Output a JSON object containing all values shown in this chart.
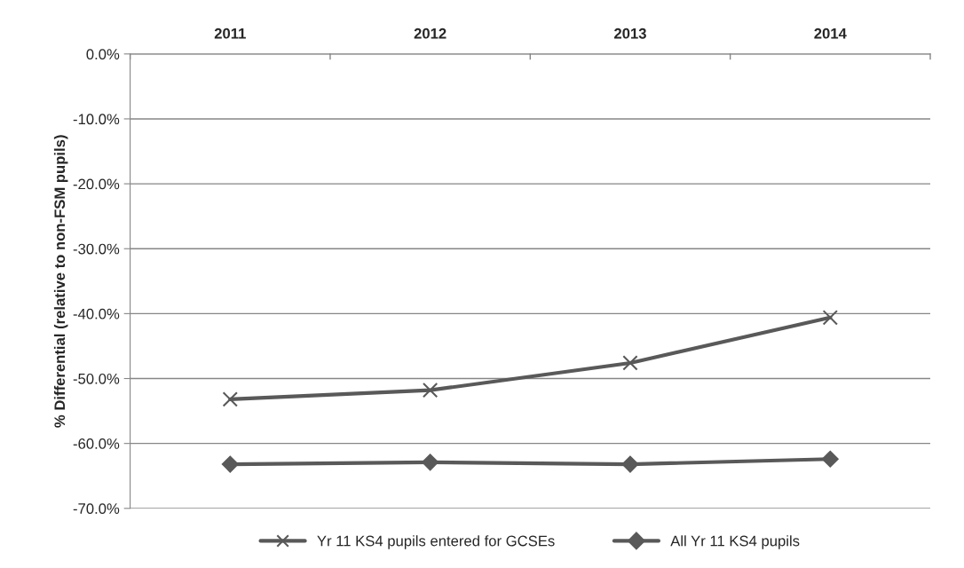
{
  "chart_data": {
    "type": "line",
    "ylabel": "% Differential (relative to non-FSM pupils)",
    "categories": [
      "2011",
      "2012",
      "2013",
      "2014"
    ],
    "series": [
      {
        "name": "Yr 11 KS4 pupils entered for GCSEs",
        "color": "#595959",
        "marker": "cross",
        "values": [
          -53.2,
          -51.8,
          -47.6,
          -40.6
        ]
      },
      {
        "name": "All Yr 11 KS4 pupils",
        "color": "#595959",
        "marker": "diamond",
        "values": [
          -63.2,
          -62.9,
          -63.2,
          -62.4
        ]
      }
    ],
    "ylim": [
      -70,
      0
    ],
    "yticks": [
      {
        "value": 0,
        "label": "0.0%"
      },
      {
        "value": -10,
        "label": "-10.0%"
      },
      {
        "value": -20,
        "label": "-20.0%"
      },
      {
        "value": -30,
        "label": "-30.0%"
      },
      {
        "value": -40,
        "label": "-40.0%"
      },
      {
        "value": -50,
        "label": "-50.0%"
      },
      {
        "value": -60,
        "label": "-60.0%"
      },
      {
        "value": -70,
        "label": "-70.0%"
      }
    ],
    "grid": "y",
    "legend": "bottom",
    "line_style": "solid"
  }
}
